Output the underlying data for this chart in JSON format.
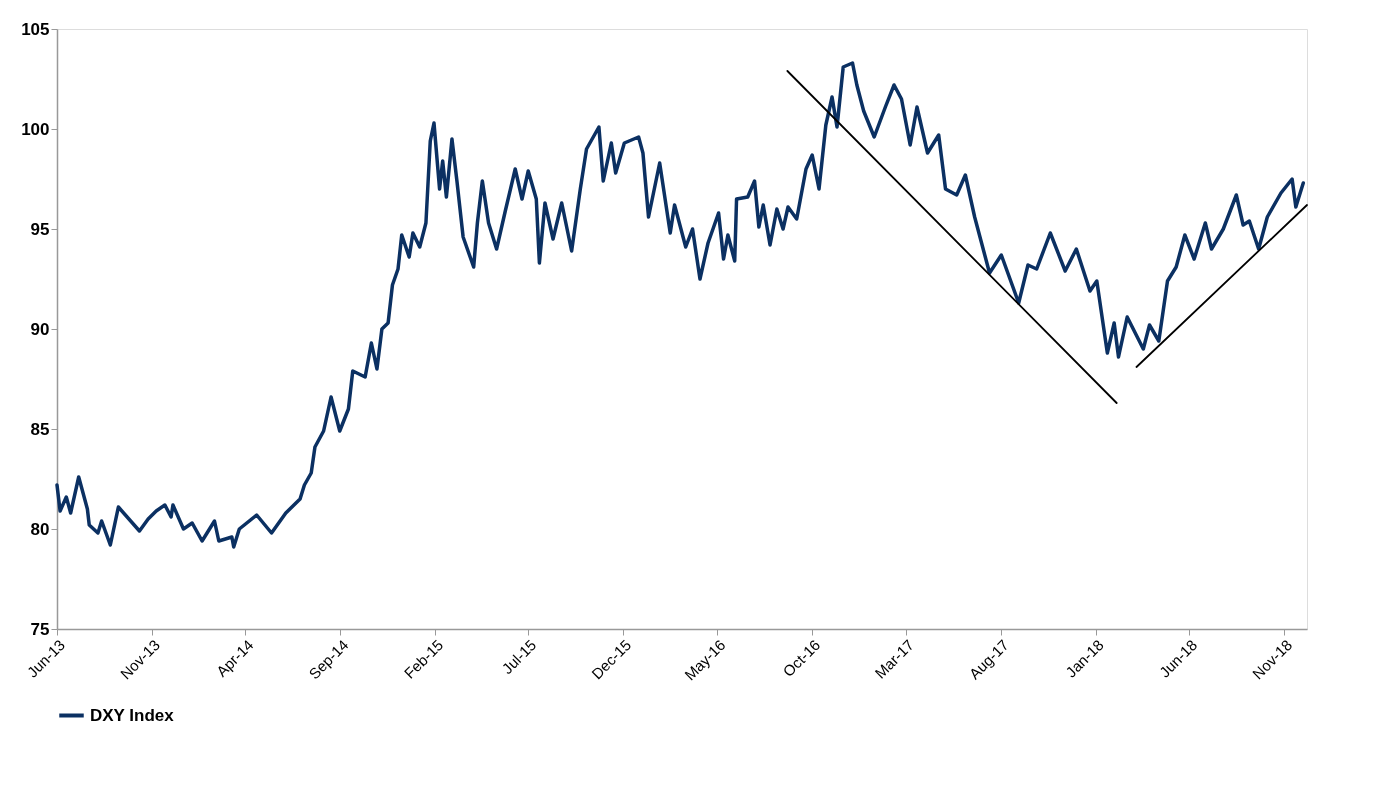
{
  "chart_data": {
    "type": "line",
    "legend": "bottom",
    "line_style": "solid",
    "xlim": [
      "2013-06-01",
      "2018-12-08"
    ],
    "ylim": [
      75,
      105
    ],
    "yticks": [
      75,
      80,
      85,
      90,
      95,
      100,
      105
    ],
    "xticks": [
      {
        "value": "2013-06-01",
        "label": "Jun-13"
      },
      {
        "value": "2013-11-01",
        "label": "Nov-13"
      },
      {
        "value": "2014-04-01",
        "label": "Apr-14"
      },
      {
        "value": "2014-09-01",
        "label": "Sep-14"
      },
      {
        "value": "2015-02-01",
        "label": "Feb-15"
      },
      {
        "value": "2015-07-01",
        "label": "Jul-15"
      },
      {
        "value": "2015-12-01",
        "label": "Dec-15"
      },
      {
        "value": "2016-05-01",
        "label": "May-16"
      },
      {
        "value": "2016-10-01",
        "label": "Oct-16"
      },
      {
        "value": "2017-03-01",
        "label": "Mar-17"
      },
      {
        "value": "2017-08-01",
        "label": "Aug-17"
      },
      {
        "value": "2018-01-01",
        "label": "Jan-18"
      },
      {
        "value": "2018-06-01",
        "label": "Jun-18"
      },
      {
        "value": "2018-11-01",
        "label": "Nov-18"
      }
    ],
    "series": [
      {
        "name": "DXY Index",
        "color": "#0b3062",
        "x": [
          "2013-06-01",
          "2013-06-06",
          "2013-06-16",
          "2013-06-23",
          "2013-07-06",
          "2013-07-20",
          "2013-07-23",
          "2013-08-06",
          "2013-08-12",
          "2013-08-26",
          "2013-09-08",
          "2013-10-12",
          "2013-10-26",
          "2013-11-08",
          "2013-11-22",
          "2013-12-02",
          "2013-12-05",
          "2013-12-22",
          "2014-01-05",
          "2014-01-21",
          "2014-02-10",
          "2014-02-17",
          "2014-03-10",
          "2014-03-13",
          "2014-03-22",
          "2014-04-19",
          "2014-05-13",
          "2014-06-05",
          "2014-06-28",
          "2014-07-05",
          "2014-07-16",
          "2014-07-22",
          "2014-08-05",
          "2014-08-17",
          "2014-08-31",
          "2014-09-14",
          "2014-09-21",
          "2014-10-11",
          "2014-10-21",
          "2014-10-30",
          "2014-11-07",
          "2014-11-17",
          "2014-11-24",
          "2014-12-03",
          "2014-12-09",
          "2014-12-21",
          "2014-12-27",
          "2015-01-07",
          "2015-01-17",
          "2015-01-24",
          "2015-01-30",
          "2015-02-08",
          "2015-02-13",
          "2015-02-19",
          "2015-02-28",
          "2015-03-08",
          "2015-03-18",
          "2015-04-04",
          "2015-04-10",
          "2015-04-18",
          "2015-04-28",
          "2015-05-11",
          "2015-05-25",
          "2015-06-10",
          "2015-06-21",
          "2015-07-01",
          "2015-07-14",
          "2015-07-19",
          "2015-07-28",
          "2015-08-10",
          "2015-08-24",
          "2015-09-09",
          "2015-09-23",
          "2015-10-03",
          "2015-10-23",
          "2015-10-30",
          "2015-11-12",
          "2015-11-19",
          "2015-12-03",
          "2015-12-26",
          "2016-01-02",
          "2016-01-11",
          "2016-01-29",
          "2016-02-15",
          "2016-02-22",
          "2016-03-11",
          "2016-03-22",
          "2016-04-03",
          "2016-04-16",
          "2016-05-03",
          "2016-05-11",
          "2016-05-18",
          "2016-05-29",
          "2016-06-01",
          "2016-06-19",
          "2016-06-30",
          "2016-07-07",
          "2016-07-14",
          "2016-07-25",
          "2016-08-05",
          "2016-08-15",
          "2016-08-23",
          "2016-09-06",
          "2016-09-21",
          "2016-10-01",
          "2016-10-12",
          "2016-10-23",
          "2016-11-02",
          "2016-11-10",
          "2016-11-20",
          "2016-12-05",
          "2016-12-12",
          "2016-12-23",
          "2017-01-09",
          "2017-01-27",
          "2017-02-10",
          "2017-02-22",
          "2017-03-08",
          "2017-03-19",
          "2017-04-05",
          "2017-04-23",
          "2017-05-04",
          "2017-05-22",
          "2017-06-05",
          "2017-06-20",
          "2017-07-14",
          "2017-08-02",
          "2017-08-30",
          "2017-09-14",
          "2017-09-28",
          "2017-10-20",
          "2017-11-13",
          "2017-12-01",
          "2017-12-23",
          "2018-01-03",
          "2018-01-20",
          "2018-01-31",
          "2018-02-07",
          "2018-02-21",
          "2018-03-19",
          "2018-03-29",
          "2018-04-13",
          "2018-04-27",
          "2018-05-11",
          "2018-05-25",
          "2018-06-09",
          "2018-06-27",
          "2018-07-07",
          "2018-07-26",
          "2018-08-16",
          "2018-08-27",
          "2018-09-06",
          "2018-09-21",
          "2018-10-05",
          "2018-10-27",
          "2018-11-14",
          "2018-11-20",
          "2018-12-02"
        ],
        "values": [
          82.2,
          80.9,
          81.6,
          80.8,
          82.6,
          81.0,
          80.2,
          79.8,
          80.4,
          79.2,
          81.1,
          79.9,
          80.5,
          80.9,
          81.2,
          80.6,
          81.2,
          80.0,
          80.3,
          79.4,
          80.4,
          79.4,
          79.6,
          79.1,
          80.0,
          80.7,
          79.8,
          80.8,
          81.5,
          82.2,
          82.8,
          84.1,
          84.9,
          86.6,
          84.9,
          86.0,
          87.9,
          87.6,
          89.3,
          88.0,
          90.0,
          90.3,
          92.2,
          93.0,
          94.7,
          93.6,
          94.8,
          94.1,
          95.3,
          99.4,
          100.3,
          97.0,
          98.4,
          96.6,
          99.5,
          97.4,
          94.6,
          93.1,
          95.3,
          97.4,
          95.3,
          94.0,
          95.9,
          98.0,
          96.5,
          97.9,
          96.5,
          93.3,
          96.3,
          94.5,
          96.3,
          93.9,
          97.0,
          99.0,
          100.1,
          97.4,
          99.3,
          97.8,
          99.3,
          99.6,
          98.8,
          95.6,
          98.3,
          94.8,
          96.2,
          94.1,
          95.0,
          92.5,
          94.3,
          95.8,
          93.5,
          94.7,
          93.4,
          96.5,
          96.6,
          97.4,
          95.1,
          96.2,
          94.2,
          96.0,
          95.0,
          96.1,
          95.5,
          98.0,
          98.7,
          97.0,
          100.2,
          101.6,
          100.1,
          103.1,
          103.3,
          102.2,
          100.9,
          99.6,
          101.1,
          102.2,
          101.5,
          99.2,
          101.1,
          98.8,
          99.7,
          97.0,
          96.7,
          97.7,
          95.6,
          92.8,
          93.7,
          91.3,
          93.2,
          93.0,
          94.8,
          92.9,
          94.0,
          91.9,
          92.4,
          88.8,
          90.3,
          88.6,
          90.6,
          89.0,
          90.2,
          89.4,
          92.4,
          93.1,
          94.7,
          93.5,
          95.3,
          94.0,
          95.0,
          96.7,
          95.2,
          95.4,
          94.0,
          95.6,
          96.8,
          97.5,
          96.1,
          97.3
        ]
      },
      {
        "color": "#000000",
        "x": [
          "2016-08-22",
          "2018-02-04"
        ],
        "values": [
          102.9,
          86.3
        ]
      },
      {
        "color": "#000000",
        "x": [
          "2018-03-08",
          "2018-12-08"
        ],
        "values": [
          88.1,
          96.2
        ]
      }
    ]
  }
}
